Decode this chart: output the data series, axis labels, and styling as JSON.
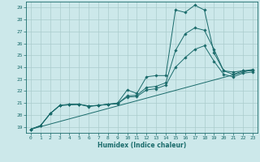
{
  "xlabel": "Humidex (Indice chaleur)",
  "bg_color": "#cce8ea",
  "grid_color": "#aacccc",
  "line_color": "#1a6b6b",
  "xlim": [
    -0.5,
    23.5
  ],
  "ylim": [
    18.5,
    29.5
  ],
  "xticks": [
    0,
    1,
    2,
    3,
    4,
    5,
    6,
    7,
    8,
    9,
    10,
    11,
    12,
    13,
    14,
    15,
    16,
    17,
    18,
    19,
    20,
    21,
    22,
    23
  ],
  "yticks": [
    19,
    20,
    21,
    22,
    23,
    24,
    25,
    26,
    27,
    28,
    29
  ],
  "series": [
    {
      "x": [
        0,
        1,
        2,
        3,
        4,
        5,
        6,
        7,
        8,
        9,
        10,
        11,
        12,
        13,
        14,
        15,
        16,
        17,
        18,
        19,
        20,
        21,
        22,
        23
      ],
      "y": [
        18.8,
        19.1,
        20.1,
        20.8,
        20.9,
        20.9,
        20.7,
        20.8,
        20.9,
        21.0,
        22.1,
        21.8,
        23.2,
        23.3,
        23.3,
        28.8,
        28.6,
        29.2,
        28.8,
        25.2,
        23.7,
        23.6,
        23.7,
        23.7
      ],
      "marker": "D",
      "markersize": 1.8
    },
    {
      "x": [
        0,
        1,
        2,
        3,
        4,
        5,
        6,
        7,
        8,
        9,
        10,
        11,
        12,
        13,
        14,
        15,
        16,
        17,
        18,
        19,
        20,
        21,
        22,
        23
      ],
      "y": [
        18.8,
        19.1,
        20.1,
        20.8,
        20.85,
        20.9,
        20.75,
        20.8,
        20.9,
        20.95,
        21.6,
        21.65,
        22.3,
        22.4,
        22.7,
        25.4,
        26.8,
        27.3,
        27.1,
        25.5,
        23.7,
        23.4,
        23.7,
        23.8
      ],
      "marker": "D",
      "markersize": 1.8
    },
    {
      "x": [
        0,
        1,
        2,
        3,
        4,
        5,
        6,
        7,
        8,
        9,
        10,
        11,
        12,
        13,
        14,
        15,
        16,
        17,
        18,
        19,
        20,
        21,
        22,
        23
      ],
      "y": [
        18.8,
        19.1,
        20.1,
        20.8,
        20.85,
        20.88,
        20.75,
        20.8,
        20.88,
        20.95,
        21.5,
        21.55,
        22.1,
        22.2,
        22.5,
        24.0,
        24.8,
        25.5,
        25.8,
        24.5,
        23.4,
        23.2,
        23.5,
        23.6
      ],
      "marker": "D",
      "markersize": 1.8
    },
    {
      "x": [
        0,
        23
      ],
      "y": [
        18.8,
        23.8
      ],
      "marker": null,
      "markersize": 0
    }
  ]
}
